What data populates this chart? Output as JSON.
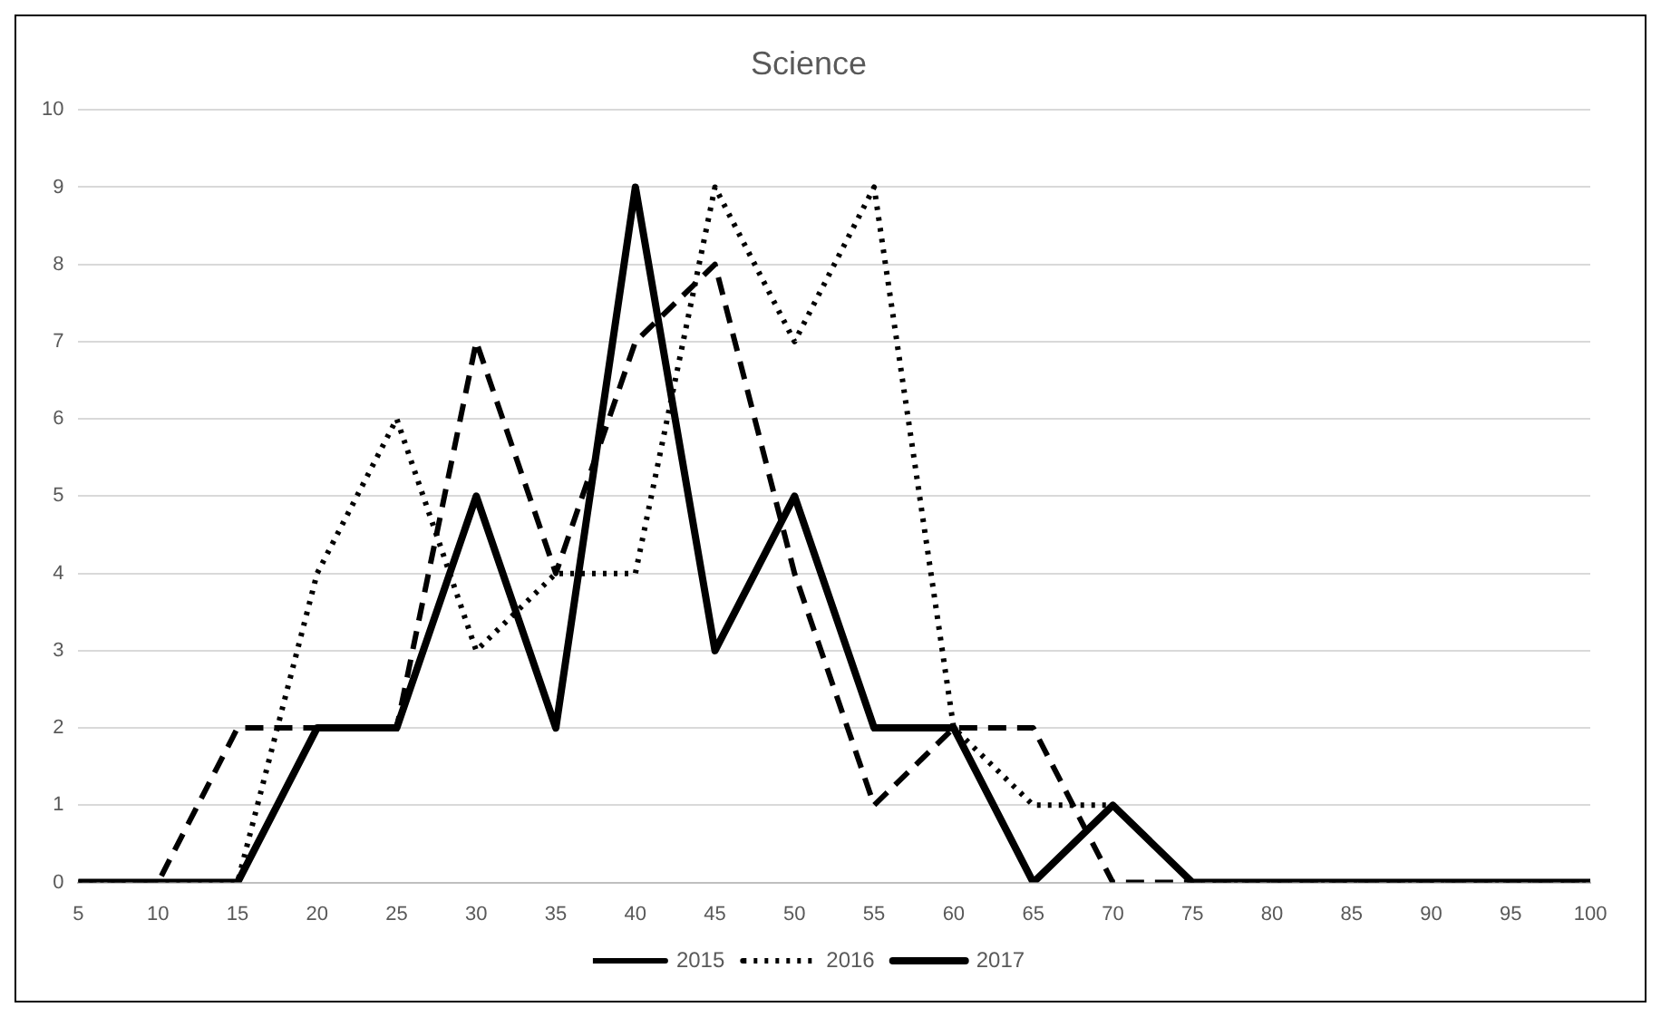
{
  "chart_data": {
    "type": "line",
    "title": "Science",
    "categories": [
      "5",
      "10",
      "15",
      "20",
      "25",
      "30",
      "35",
      "40",
      "45",
      "50",
      "55",
      "60",
      "65",
      "70",
      "75",
      "80",
      "85",
      "90",
      "95",
      "100"
    ],
    "series": [
      {
        "name": "2015",
        "color": "#000000",
        "line_style": "dashed",
        "values": [
          0,
          0,
          2,
          2,
          2,
          7,
          4,
          7,
          8,
          4,
          1,
          2,
          2,
          0,
          0,
          0,
          0,
          0,
          0,
          0
        ]
      },
      {
        "name": "2016",
        "color": "#000000",
        "line_style": "dotted",
        "values": [
          0,
          0,
          0,
          4,
          6,
          3,
          4,
          4,
          9,
          7,
          9,
          2,
          1,
          1,
          0,
          0,
          0,
          0,
          0,
          0
        ]
      },
      {
        "name": "2017",
        "color": "#000000",
        "line_style": "solid",
        "values": [
          0,
          0,
          0,
          2,
          2,
          5,
          2,
          9,
          3,
          5,
          2,
          2,
          0,
          1,
          0,
          0,
          0,
          0,
          0,
          0
        ]
      }
    ],
    "ylim": [
      0,
      10
    ],
    "yticks": [
      0,
      1,
      2,
      3,
      4,
      5,
      6,
      7,
      8,
      9,
      10
    ],
    "grid": "y",
    "legend": "bottom",
    "marker": "none"
  }
}
